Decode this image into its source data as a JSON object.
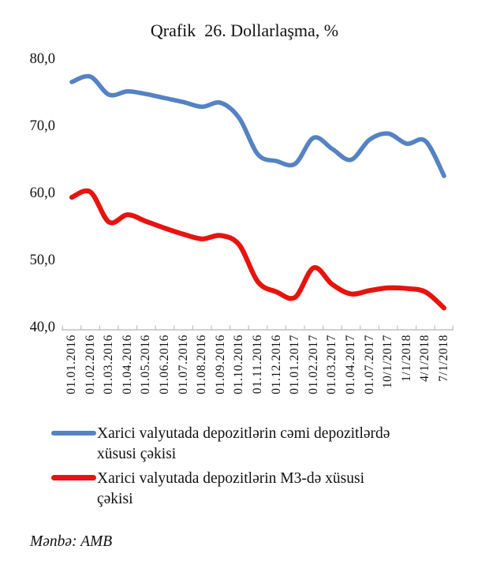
{
  "title": "Qrafik  26. Dollarlaşma, %",
  "source": "Mənbə: AMB",
  "colors": {
    "series1": "#5582C3",
    "series2": "#E6140F",
    "axis": "#C0C0C0",
    "text": "#111111"
  },
  "legend": {
    "items": [
      {
        "label": "Xarici valyutada depozitlərin cəmi depozitlərdə\nxüsusi çəkisi",
        "color": "#5582C3"
      },
      {
        "label": "Xarici valyutada depozitlərin M3-də xüsusi\nçəkisi",
        "color": "#E6140F"
      }
    ]
  },
  "chart_data": {
    "type": "line",
    "title": "Qrafik 26. Dollarlaşma, %",
    "xlabel": "",
    "ylabel": "",
    "ylim": [
      40,
      80
    ],
    "grid": false,
    "legend_position": "bottom",
    "ytick_labels": [
      "80,0",
      "70,0",
      "60,0",
      "50,0",
      "40,0"
    ],
    "ytick_values": [
      80,
      70,
      60,
      50,
      40
    ],
    "categories": [
      "01.01.2016",
      "01.02.2016",
      "01.03.2016",
      "01.04.2016",
      "01.05.2016",
      "01.06.2016",
      "01.07.2016",
      "01.08.2016",
      "01.09.2016",
      "01.10.2016",
      "01.11.2016",
      "01.12.2016",
      "01.01.2017",
      "01.02.2017",
      "01.03.2017",
      "01.04.2017",
      "01.07.2017",
      "10/1/2017",
      "1/1/2018",
      "4/1/2018",
      "7/1/2018"
    ],
    "series": [
      {
        "name": "Xarici valyutada depozitlərin cəmi depozitlərdə xüsusi çəkisi",
        "color": "#5582C3",
        "values": [
          76.6,
          77.4,
          74.7,
          75.2,
          74.8,
          74.2,
          73.6,
          72.9,
          73.5,
          71.2,
          65.8,
          64.8,
          64.4,
          68.3,
          66.6,
          65.0,
          68.0,
          68.9,
          67.4,
          67.8,
          62.6
        ]
      },
      {
        "name": "Xarici valyutada depozitlərin M3-də xüsusi çəkisi",
        "color": "#E6140F",
        "values": [
          59.4,
          60.2,
          55.7,
          56.8,
          55.8,
          54.8,
          53.9,
          53.2,
          53.7,
          52.3,
          46.8,
          45.3,
          44.5,
          48.9,
          46.4,
          45.0,
          45.5,
          45.9,
          45.8,
          45.3,
          42.9
        ]
      }
    ]
  }
}
